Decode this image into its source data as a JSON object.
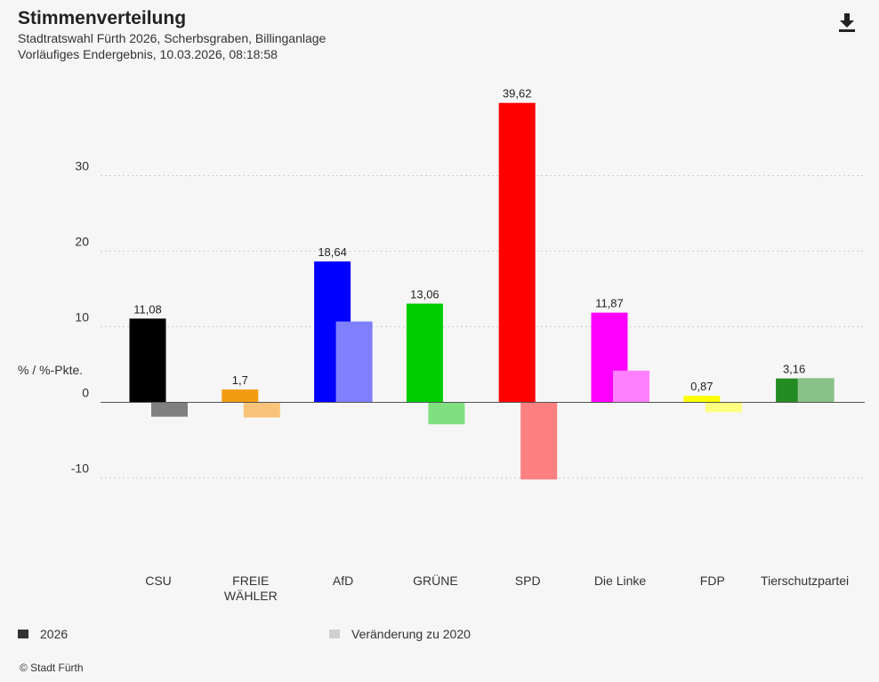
{
  "header": {
    "title": "Stimmenverteilung",
    "subtitle1": "Stadtratswahl Fürth 2026, Scherbsgraben, Billinganlage",
    "subtitle2": "Vorläufiges Endergebnis, 10.03.2026, 08:18:58"
  },
  "chart_data": {
    "type": "bar",
    "title": "Stimmenverteilung",
    "ylabel": "% / %-Pkte.",
    "ylim": [
      -15,
      42
    ],
    "yticks": [
      -10,
      0,
      10,
      20,
      30
    ],
    "categories": [
      "CSU",
      "FREIE\nWÄHLER",
      "AfD",
      "GRÜNE",
      "SPD",
      "Die Linke",
      "FDP",
      "Tierschutzpartei"
    ],
    "series": [
      {
        "name": "2026",
        "values": [
          11.08,
          1.7,
          18.64,
          13.06,
          39.62,
          11.87,
          0.87,
          3.16
        ],
        "labels": [
          "11,08",
          "1,7",
          "18,64",
          "13,06",
          "39,62",
          "11,87",
          "0,87",
          "3,16"
        ],
        "colors": [
          "#000000",
          "#f39c12",
          "#0000ff",
          "#00cc00",
          "#ff0000",
          "#ff00ff",
          "#ffff00",
          "#228b22"
        ]
      },
      {
        "name": "Veränderung zu 2020",
        "values": [
          -1.9,
          -2.0,
          10.7,
          -2.9,
          -10.2,
          4.2,
          -1.3,
          3.2
        ],
        "colors": [
          "#808080",
          "#f9c47a",
          "#8080ff",
          "#80e080",
          "#ff8080",
          "#ff80ff",
          "#ffff80",
          "#88c288"
        ]
      }
    ]
  },
  "legend": {
    "items": [
      {
        "label": "2026",
        "color": "#333333"
      },
      {
        "label": "Veränderung zu 2020",
        "color": "#d0d0d0"
      }
    ]
  },
  "footer": {
    "copyright": "© Stadt Fürth"
  },
  "icons": {
    "download": "download-icon"
  }
}
